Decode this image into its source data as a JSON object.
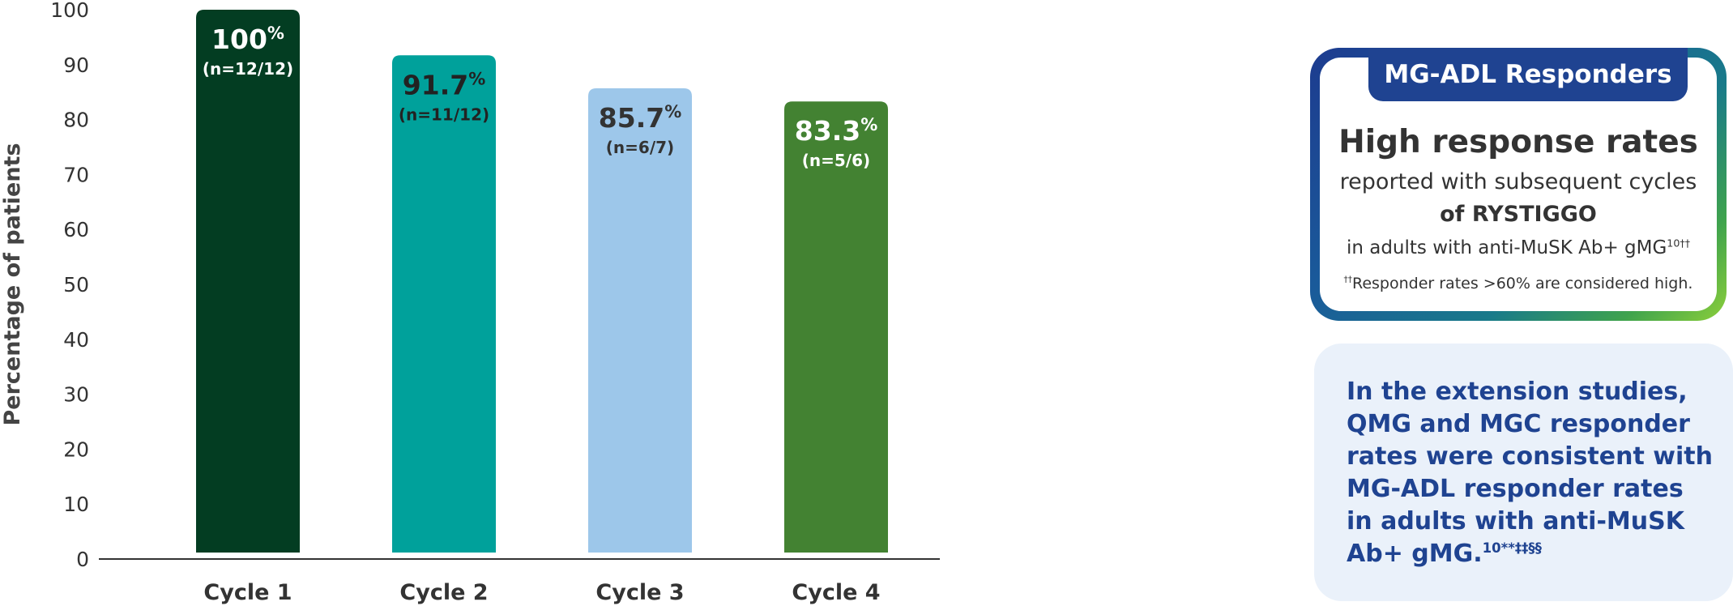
{
  "chart_data": {
    "type": "bar",
    "categories": [
      "Cycle 1",
      "Cycle 2",
      "Cycle 3",
      "Cycle 4"
    ],
    "values": [
      100,
      91.7,
      85.7,
      83.3
    ],
    "value_labels": [
      "100",
      "91.7",
      "85.7",
      "83.3"
    ],
    "value_suffix": "%",
    "n_labels": [
      "(n=12/12)",
      "(n=11/12)",
      "(n=6/7)",
      "(n=5/6)"
    ],
    "ylabel": "Percentage of patients",
    "xlabel": "",
    "ylim": [
      0,
      100
    ],
    "yticks": [
      0,
      10,
      20,
      30,
      40,
      50,
      60,
      70,
      80,
      90,
      100
    ],
    "grid": false,
    "bar_colors": [
      "#033d22",
      "#00a19b",
      "#9dc7ea",
      "#438232"
    ],
    "label_colors": [
      "#ffffff",
      "#222222",
      "#333333",
      "#ffffff"
    ]
  },
  "callout": {
    "tag": "MG-ADL Responders",
    "headline": "High response rates",
    "line1": "reported with subsequent cycles",
    "line2": "of RYSTIGGO",
    "line3": "in adults with anti-MuSK Ab+ gMG",
    "line3_sup": "10††",
    "footnote_sup": "††",
    "footnote": "Responder rates >60% are considered high."
  },
  "note": {
    "lines": [
      "In the extension studies,",
      "QMG and MGC responder",
      "rates were consistent with",
      "MG-ADL responder rates",
      "in adults with anti-MuSK",
      "Ab+ gMG."
    ],
    "sup": "10**‡‡§§"
  }
}
